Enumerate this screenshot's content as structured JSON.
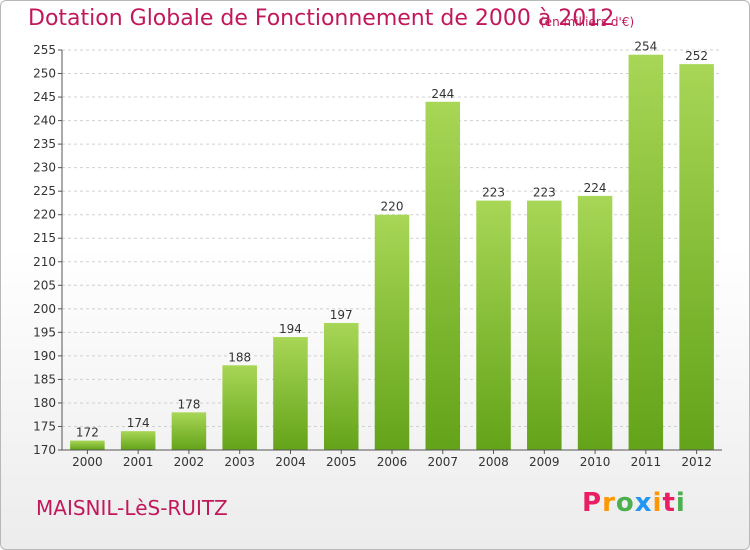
{
  "title": "Dotation Globale de Fonctionnement de 2000 à 2012",
  "subtitle": "(en milliers d'€)",
  "location": "MAISNIL-LèS-RUITZ",
  "brand": {
    "text": "Proxiti",
    "colors": [
      "#e91e63",
      "#ff9800",
      "#4caf50",
      "#2196f3",
      "#ff9800",
      "#e91e63",
      "#4caf50"
    ]
  },
  "colors": {
    "title": "#c2185b",
    "bar_light": "#a8d656",
    "bar_dark": "#63a319",
    "grid": "#d0d0d0",
    "axis": "#555555"
  },
  "chart_data": {
    "type": "bar",
    "title": "Dotation Globale de Fonctionnement de 2000 à 2012",
    "subtitle": "(en milliers d'€)",
    "categories": [
      "2000",
      "2001",
      "2002",
      "2003",
      "2004",
      "2005",
      "2006",
      "2007",
      "2008",
      "2009",
      "2010",
      "2011",
      "2012"
    ],
    "values": [
      172,
      174,
      178,
      188,
      194,
      197,
      220,
      244,
      223,
      223,
      224,
      254,
      252
    ],
    "ylim": [
      170,
      255
    ],
    "yticks": [
      170,
      175,
      180,
      185,
      190,
      195,
      200,
      205,
      210,
      215,
      220,
      225,
      230,
      235,
      240,
      245,
      250,
      255
    ],
    "grid": true,
    "xlabel": "",
    "ylabel": ""
  }
}
